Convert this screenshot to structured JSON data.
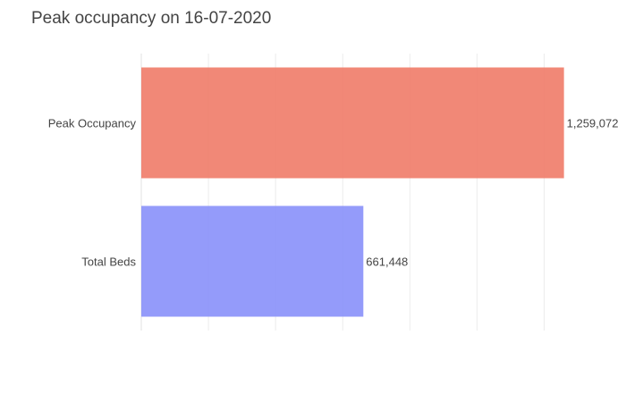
{
  "chart_data": {
    "type": "bar",
    "orientation": "horizontal",
    "title": "Peak occupancy on 16-07-2020",
    "xlabel": "",
    "ylabel": "",
    "categories": [
      "Peak Occupancy",
      "Total Beds"
    ],
    "values": [
      1259072,
      661448
    ],
    "value_labels": [
      "1,259,072",
      "661,448"
    ],
    "colors": [
      "#ef7b68",
      "#8890fa"
    ],
    "xlim": [
      0,
      1300000
    ],
    "grid": true,
    "gridline_step": 200000,
    "legend": "none"
  }
}
